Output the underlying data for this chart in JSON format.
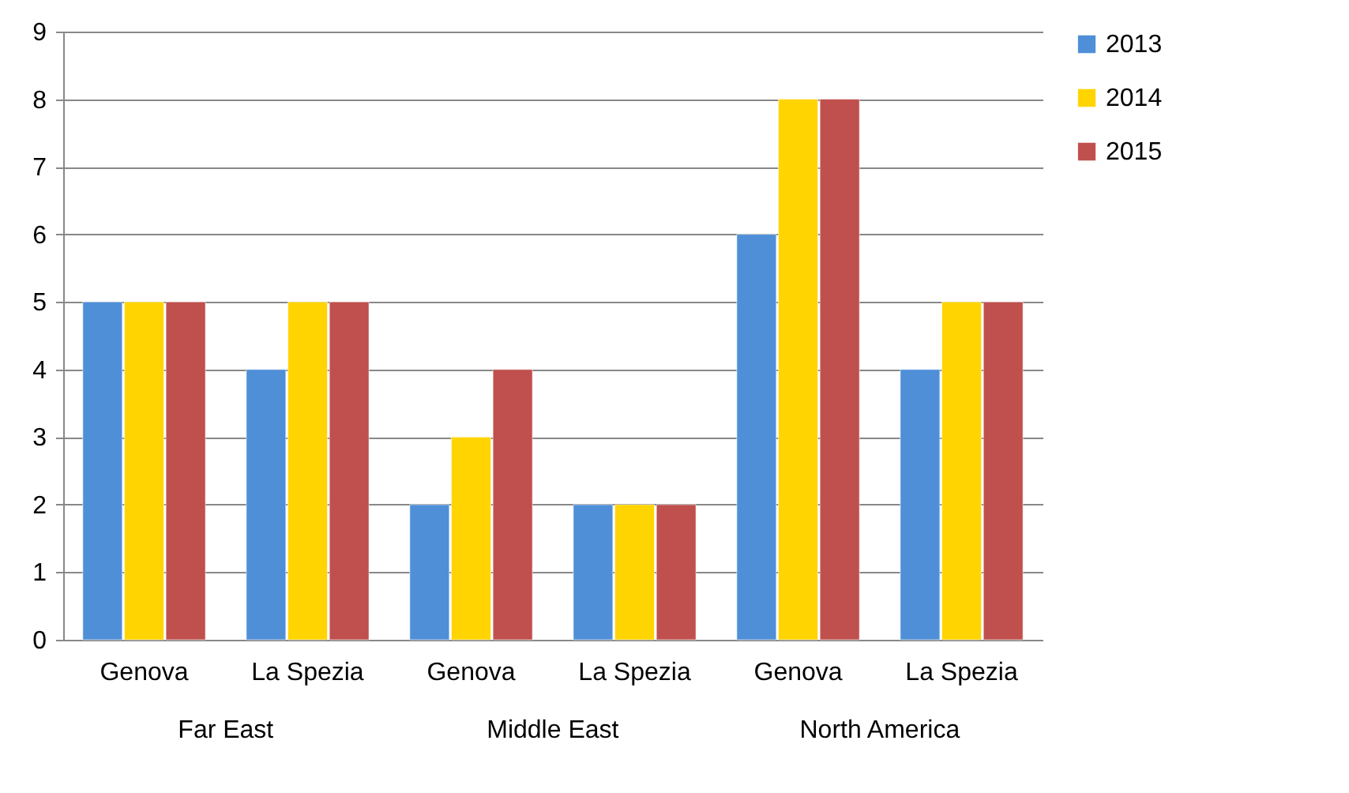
{
  "chart_data": {
    "type": "bar",
    "categories": [
      "Genova",
      "La Spezia",
      "Genova",
      "La Spezia",
      "Genova",
      "La Spezia"
    ],
    "series": [
      {
        "name": "2013",
        "color": "#4f8fd8",
        "values": [
          5,
          4,
          2,
          2,
          6,
          4
        ]
      },
      {
        "name": "2014",
        "color": "#ffd400",
        "values": [
          5,
          5,
          3,
          2,
          8,
          5
        ]
      },
      {
        "name": "2015",
        "color": "#c0504d",
        "values": [
          5,
          5,
          4,
          2,
          8,
          5
        ]
      }
    ],
    "annotations": [
      "Far East",
      "Middle East",
      "North America"
    ],
    "ylim": [
      0,
      9
    ],
    "yticks": [
      0,
      1,
      2,
      3,
      4,
      5,
      6,
      7,
      8,
      9
    ],
    "grid": "y",
    "legend": "right"
  }
}
